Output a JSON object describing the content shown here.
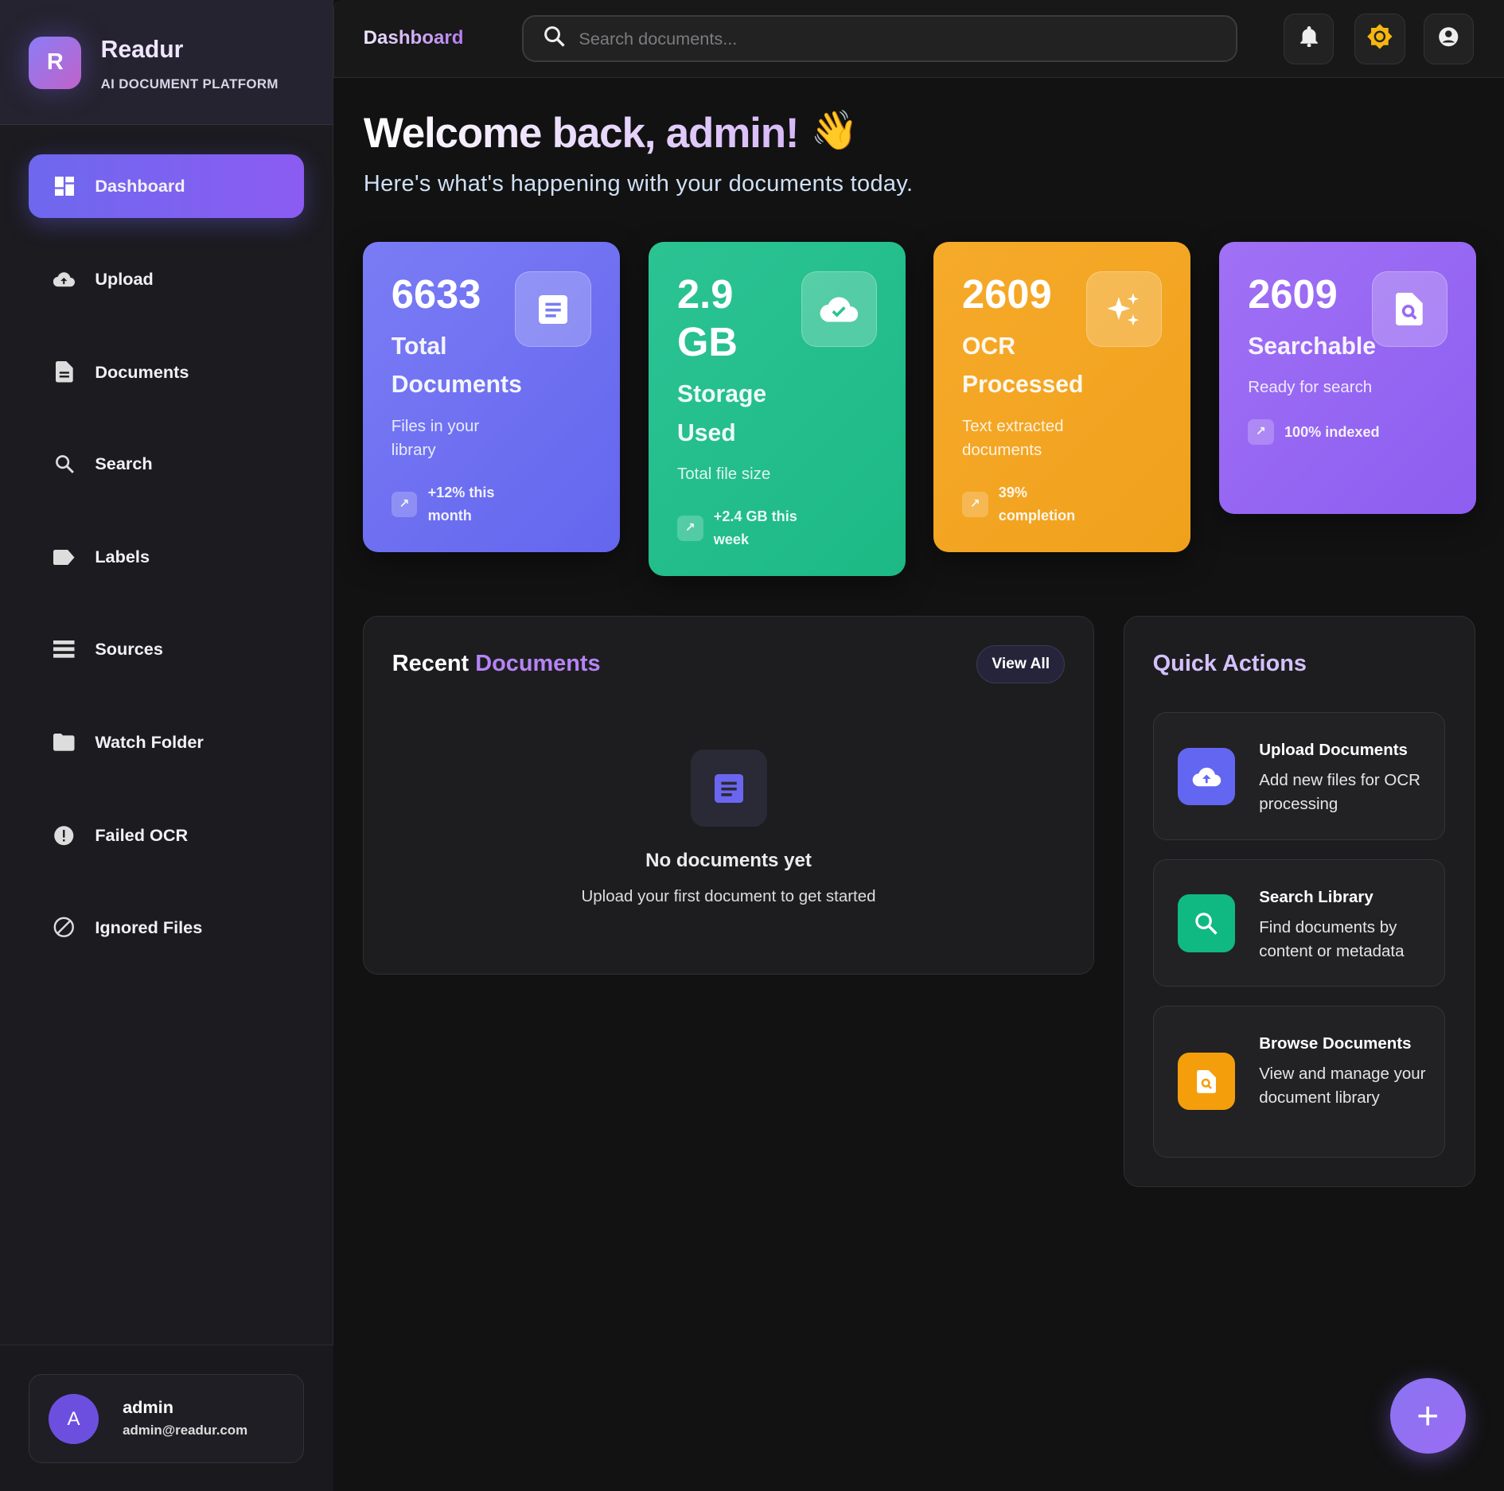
{
  "brand": {
    "logo_letter": "R",
    "name": "Readur",
    "subtitle": "AI DOCUMENT PLATFORM"
  },
  "sidebar": {
    "items": [
      {
        "label": "Dashboard",
        "icon": "dashboard-icon",
        "active": true
      },
      {
        "label": "Upload",
        "icon": "cloud-upload-icon"
      },
      {
        "label": "Documents",
        "icon": "document-icon"
      },
      {
        "label": "Search",
        "icon": "search-icon"
      },
      {
        "label": "Labels",
        "icon": "label-icon"
      },
      {
        "label": "Sources",
        "icon": "storage-icon"
      },
      {
        "label": "Watch Folder",
        "icon": "folder-icon"
      },
      {
        "label": "Failed OCR",
        "icon": "error-icon"
      },
      {
        "label": "Ignored Files",
        "icon": "block-icon"
      }
    ]
  },
  "user": {
    "initial": "A",
    "name": "admin",
    "email": "admin@readur.com"
  },
  "topbar": {
    "title": "Dashboard",
    "search_placeholder": "Search documents..."
  },
  "welcome": {
    "title": "Welcome back, admin!",
    "emoji": "👋",
    "subtitle": "Here's what's happening with your documents today."
  },
  "stats": [
    {
      "value": "6633",
      "label": "Total Documents",
      "desc": "Files in your library",
      "trend": "+12% this month",
      "color": "#6c6cf0",
      "icon": "document-icon"
    },
    {
      "value": "2.9 GB",
      "label": "Storage Used",
      "desc": "Total file size",
      "trend": "+2.4 GB this week",
      "color": "#22bb88",
      "icon": "cloud-done-icon"
    },
    {
      "value": "2609",
      "label": "OCR Processed",
      "desc": "Text extracted documents",
      "trend": "39% completion",
      "color": "#f2a420",
      "icon": "sparkle-icon"
    },
    {
      "value": "2609",
      "label": "Searchable",
      "desc": "Ready for search",
      "trend": "100% indexed",
      "color": "#9163f0",
      "icon": "find-in-page-icon"
    }
  ],
  "recent": {
    "title_a": "Recent",
    "title_b": "Documents",
    "view_all": "View All",
    "empty_title": "No documents yet",
    "empty_desc": "Upload your first document to get started"
  },
  "quick_actions": {
    "title": "Quick Actions",
    "items": [
      {
        "title": "Upload Documents",
        "desc": "Add new files for OCR processing",
        "color": "#6366f1"
      },
      {
        "title": "Search Library",
        "desc": "Find documents by content or metadata",
        "color": "#10b981"
      },
      {
        "title": "Browse Documents",
        "desc": "View and manage your document library",
        "color": "#f59e0b"
      }
    ]
  },
  "fab": {
    "label": "+"
  }
}
